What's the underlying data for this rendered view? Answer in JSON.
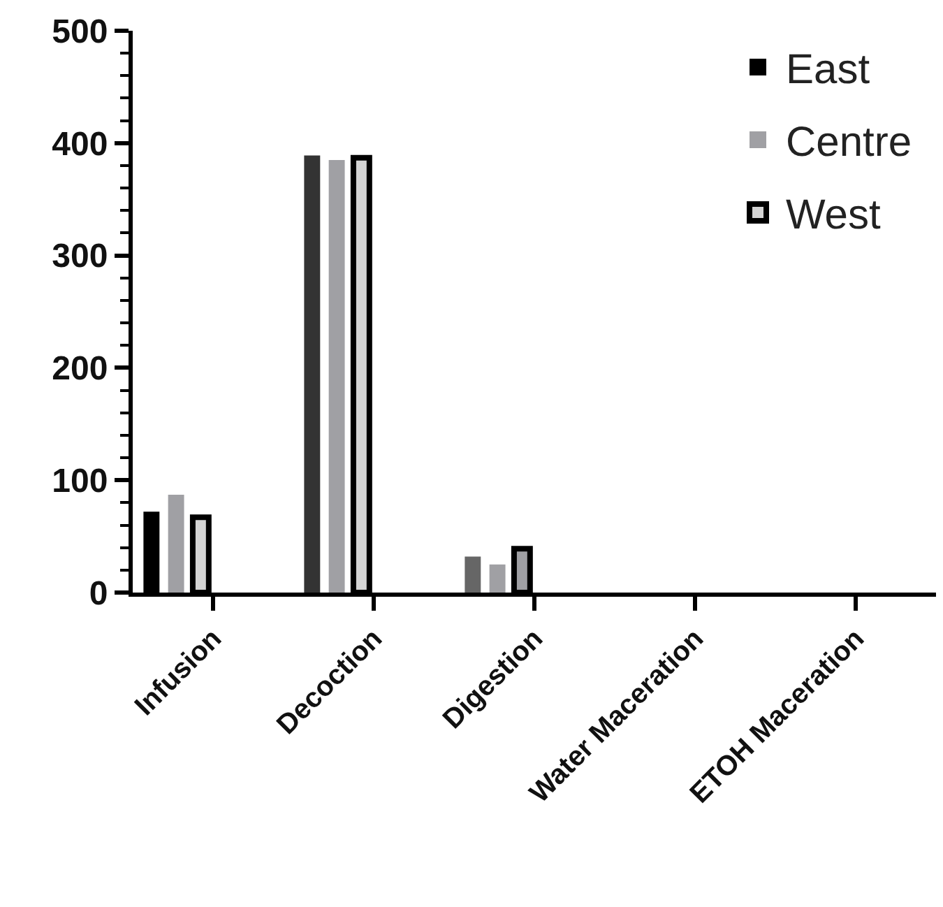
{
  "chart_data": {
    "type": "bar",
    "categories": [
      "Infusion",
      "Decoction",
      "Digestion",
      "Water Maceration",
      "ETOH Maceration"
    ],
    "series": [
      {
        "name": "East",
        "color": "#000000",
        "colors": [
          "#000000",
          "#333333",
          "#666666",
          "#000000",
          "#000000"
        ],
        "values": [
          72,
          389,
          32,
          0,
          0
        ]
      },
      {
        "name": "Centre",
        "color": "#a0a0a4",
        "colors": [
          "#a0a0a4",
          "#a0a0a4",
          "#a0a0a4",
          "#a0a0a4",
          "#a0a0a4"
        ],
        "values": [
          87,
          385,
          25,
          0,
          0
        ]
      },
      {
        "name": "West",
        "color": "#d4d4d4",
        "colors": [
          "#d4d4d4",
          "#d4d4d4",
          "#a0a0a4",
          "#d4d4d4",
          "#d4d4d4"
        ],
        "values": [
          67,
          387,
          39,
          0,
          0
        ]
      }
    ],
    "ylim": [
      0,
      500
    ],
    "yticks": [
      0,
      100,
      200,
      300,
      400,
      500
    ],
    "grid": false,
    "legend": "top right"
  }
}
